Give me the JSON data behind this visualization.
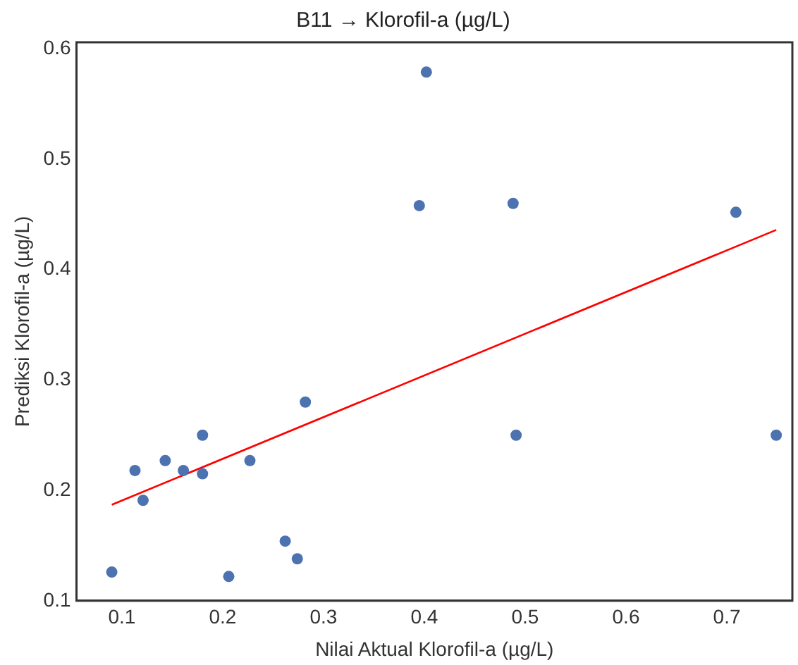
{
  "chart_data": {
    "type": "scatter",
    "title": "B11 → Klorofil-a (µg/L)",
    "xlabel": "Nilai Aktual Klorofil-a (µg/L)",
    "ylabel": "Prediksi Klorofil-a (µg/L)",
    "xlim": [
      0.055,
      0.765
    ],
    "ylim": [
      0.1,
      0.606
    ],
    "xticks": [
      0.1,
      0.2,
      0.3,
      0.4,
      0.5,
      0.6,
      0.7
    ],
    "yticks": [
      0.1,
      0.2,
      0.3,
      0.4,
      0.5,
      0.6
    ],
    "grid": false,
    "legend": false,
    "series": [
      {
        "marker": "circle",
        "color": "#4c72b0",
        "x": [
          0.09,
          0.113,
          0.121,
          0.143,
          0.161,
          0.18,
          0.18,
          0.206,
          0.227,
          0.262,
          0.274,
          0.282,
          0.395,
          0.402,
          0.488,
          0.491,
          0.709,
          0.749
        ],
        "values": [
          0.126,
          0.218,
          0.191,
          0.227,
          0.218,
          0.25,
          0.215,
          0.122,
          0.227,
          0.154,
          0.138,
          0.28,
          0.458,
          0.579,
          0.46,
          0.25,
          0.452,
          0.25
        ]
      },
      {
        "type": "line",
        "marker": "none",
        "color": "#ff0000",
        "x": [
          0.09,
          0.749
        ],
        "values": [
          0.187,
          0.436
        ]
      }
    ]
  }
}
